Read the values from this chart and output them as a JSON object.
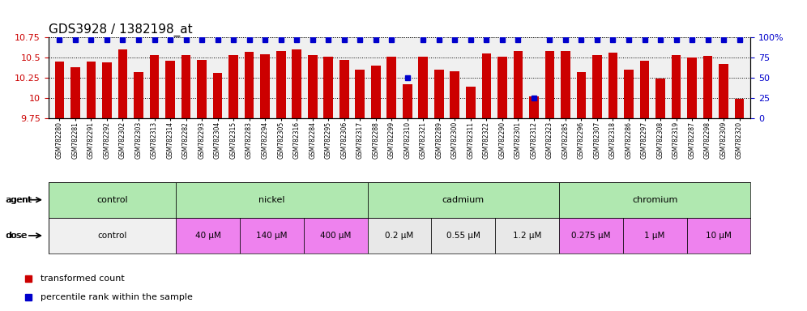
{
  "title": "GDS3928 / 1382198_at",
  "samples": [
    "GSM782280",
    "GSM782281",
    "GSM782291",
    "GSM782292",
    "GSM782302",
    "GSM782303",
    "GSM782313",
    "GSM782314",
    "GSM782282",
    "GSM782293",
    "GSM782304",
    "GSM782315",
    "GSM782283",
    "GSM782294",
    "GSM782305",
    "GSM782316",
    "GSM782284",
    "GSM782295",
    "GSM782306",
    "GSM782317",
    "GSM782288",
    "GSM782299",
    "GSM782310",
    "GSM782321",
    "GSM782289",
    "GSM782300",
    "GSM782311",
    "GSM782322",
    "GSM782290",
    "GSM782301",
    "GSM782312",
    "GSM782323",
    "GSM782285",
    "GSM782296",
    "GSM782307",
    "GSM782318",
    "GSM782286",
    "GSM782297",
    "GSM782308",
    "GSM782319",
    "GSM782287",
    "GSM782298",
    "GSM782309",
    "GSM782320"
  ],
  "bar_values": [
    10.45,
    10.38,
    10.45,
    10.44,
    10.6,
    10.32,
    10.53,
    10.46,
    10.53,
    10.47,
    10.31,
    10.53,
    10.57,
    10.54,
    10.58,
    10.6,
    10.53,
    10.51,
    10.47,
    10.35,
    10.4,
    10.51,
    10.17,
    10.51,
    10.35,
    10.33,
    10.14,
    10.55,
    10.51,
    10.58,
    10.02,
    10.58,
    10.58,
    10.32,
    10.53,
    10.56,
    10.35,
    10.46,
    10.24,
    10.53,
    10.5,
    10.52,
    10.42,
    9.99
  ],
  "percentile_values": [
    97,
    97,
    97,
    97,
    97,
    97,
    97,
    97,
    97,
    97,
    97,
    97,
    97,
    97,
    97,
    97,
    97,
    97,
    97,
    97,
    97,
    97,
    50,
    97,
    97,
    97,
    97,
    97,
    97,
    97,
    25,
    97,
    97,
    97,
    97,
    97,
    97,
    97,
    97,
    97,
    97,
    97,
    97,
    97
  ],
  "ylim": [
    9.75,
    10.75
  ],
  "yticks": [
    9.75,
    10.0,
    10.25,
    10.5,
    10.75
  ],
  "ytick_labels": [
    "9.75",
    "10",
    "10.25",
    "10.5",
    "10.75"
  ],
  "right_yticks": [
    0,
    25,
    50,
    75,
    100
  ],
  "right_ytick_labels": [
    "0",
    "25",
    "50",
    "75",
    "100%"
  ],
  "bar_color": "#cc0000",
  "percentile_color": "#0000cc",
  "bg_color": "#f0f0f0",
  "agent_groups": [
    {
      "label": "control",
      "start": 0,
      "end": 8,
      "color": "#90ee90"
    },
    {
      "label": "nickel",
      "start": 8,
      "end": 20,
      "color": "#90ee90"
    },
    {
      "label": "cadmium",
      "start": 20,
      "end": 32,
      "color": "#90ee90"
    },
    {
      "label": "chromium",
      "start": 32,
      "end": 44,
      "color": "#90ee90"
    }
  ],
  "dose_groups": [
    {
      "label": "control",
      "start": 0,
      "end": 8,
      "color": "#f5f5f5"
    },
    {
      "label": "40 μM",
      "start": 8,
      "end": 12,
      "color": "#ee82ee"
    },
    {
      "label": "140 μM",
      "start": 12,
      "end": 16,
      "color": "#ee82ee"
    },
    {
      "label": "400 μM",
      "start": 16,
      "end": 20,
      "color": "#ee82ee"
    },
    {
      "label": "0.2 μM",
      "start": 20,
      "end": 24,
      "color": "#f5f5f5"
    },
    {
      "label": "0.55 μM",
      "start": 24,
      "end": 28,
      "color": "#f5f5f5"
    },
    {
      "label": "1.2 μM",
      "start": 28,
      "end": 32,
      "color": "#f5f5f5"
    },
    {
      "label": "0.275 μM",
      "start": 32,
      "end": 36,
      "color": "#ee82ee"
    },
    {
      "label": "1 μM",
      "start": 36,
      "end": 40,
      "color": "#ee82ee"
    },
    {
      "label": "10 μM",
      "start": 40,
      "end": 44,
      "color": "#ee82ee"
    }
  ],
  "legend_items": [
    {
      "label": "transformed count",
      "color": "#cc0000",
      "marker": "s"
    },
    {
      "label": "percentile rank within the sample",
      "color": "#0000cc",
      "marker": "s"
    }
  ],
  "title_fontsize": 11,
  "tick_fontsize": 7,
  "bar_width": 0.6
}
